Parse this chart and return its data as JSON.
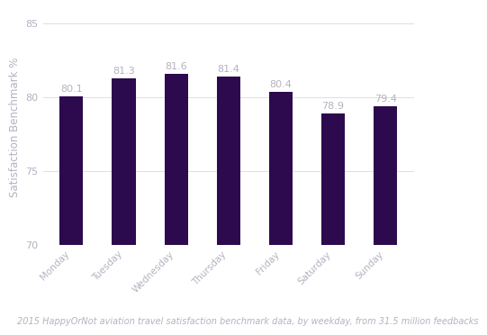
{
  "categories": [
    "Monday",
    "Tuesday",
    "Wednesday",
    "Thursday",
    "Friday",
    "Saturday",
    "Sunday"
  ],
  "values": [
    80.1,
    81.3,
    81.6,
    81.4,
    80.4,
    78.9,
    79.4
  ],
  "bar_color": "#2d0a4e",
  "label_color": "#b8b0c0",
  "ylabel": "Satisfaction Benchmark %",
  "ylim": [
    70,
    86
  ],
  "yticks": [
    70,
    75,
    80,
    85
  ],
  "caption": "2015 HappyOrNot aviation travel satisfaction benchmark data, by weekday, from 31.5 million feedbacks",
  "background_color": "#ffffff",
  "grid_color": "#e0dce5",
  "tick_color": "#b8b0c0",
  "bar_width": 0.45,
  "label_fontsize": 8,
  "ylabel_fontsize": 8.5,
  "caption_fontsize": 7,
  "xtick_fontsize": 7.5,
  "ytick_fontsize": 8
}
